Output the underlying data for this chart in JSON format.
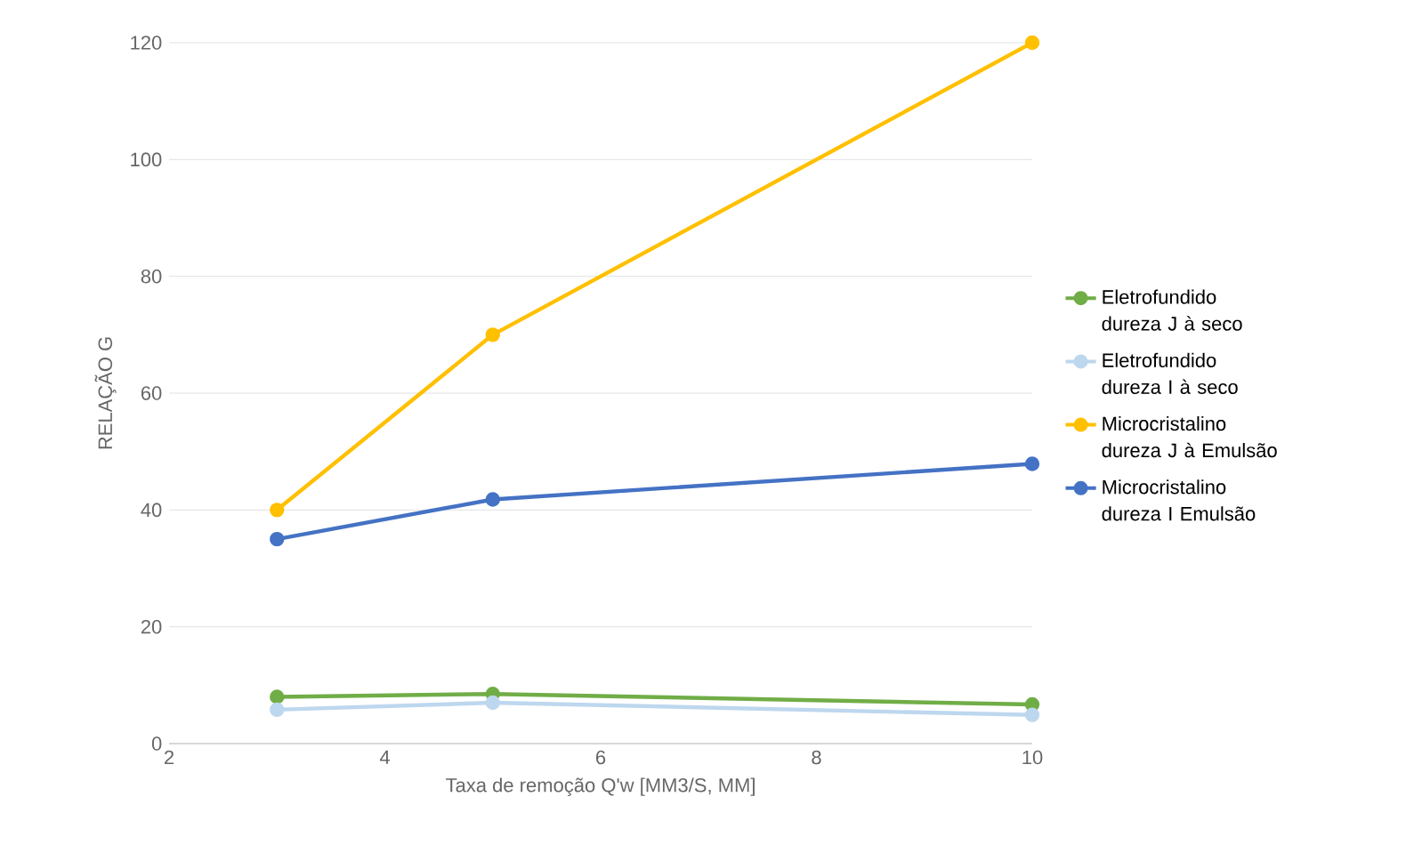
{
  "chart_data": {
    "type": "line",
    "xlabel": "Taxa de remoção Q'w [MM3/S, MM]",
    "ylabel": "RELAÇÃO G",
    "x": [
      3,
      5,
      10
    ],
    "series": [
      {
        "name": "Eletrofundido dureza J à seco",
        "color": "#70ad47",
        "values": [
          8,
          8.5,
          6.7
        ]
      },
      {
        "name": "Eletrofundido dureza I à seco",
        "color": "#bdd7ee",
        "values": [
          5.8,
          7,
          4.9
        ]
      },
      {
        "name": "Microcristalino dureza J à Emulsão",
        "color": "#ffc000",
        "values": [
          40,
          70,
          120
        ]
      },
      {
        "name": "Microcristalino dureza I Emulsão",
        "color": "#4472c4",
        "values": [
          35,
          41.8,
          47.9
        ]
      }
    ],
    "xlim": [
      2,
      10
    ],
    "xticks": [
      2,
      4,
      6,
      8,
      10
    ],
    "ylim": [
      0,
      120
    ],
    "yticks": [
      0,
      20,
      40,
      60,
      80,
      100,
      120
    ],
    "grid": "y",
    "legend": "right",
    "marker": "circle",
    "line_style": "solid"
  }
}
